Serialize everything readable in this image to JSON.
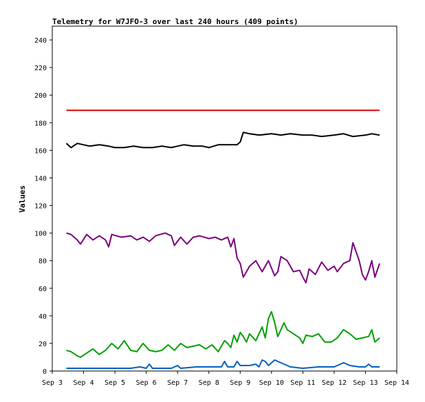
{
  "chart_data": {
    "type": "line",
    "title": "Telemetry for W7JFO-3 over last 240 hours (409 points)",
    "xlabel": "",
    "ylabel": "Values",
    "ylim": [
      0,
      250
    ],
    "yticks": [
      0,
      20,
      40,
      60,
      80,
      100,
      120,
      140,
      160,
      180,
      200,
      220,
      240
    ],
    "xlim": [
      3,
      14
    ],
    "xticks": [
      {
        "x": 3,
        "label": "Sep 3"
      },
      {
        "x": 4,
        "label": "Sep 4"
      },
      {
        "x": 5,
        "label": "Sep 5"
      },
      {
        "x": 6,
        "label": "Sep 6"
      },
      {
        "x": 7,
        "label": "Sep 7"
      },
      {
        "x": 8,
        "label": "Sep 8"
      },
      {
        "x": 9,
        "label": "Sep 9"
      },
      {
        "x": 10,
        "label": "Sep 10"
      },
      {
        "x": 11,
        "label": "Sep 11"
      },
      {
        "x": 12,
        "label": "Sep 12"
      },
      {
        "x": 13,
        "label": "Sep 13"
      },
      {
        "x": 14,
        "label": "Sep 14"
      }
    ],
    "grid": false,
    "series": [
      {
        "color": "#e00000",
        "points": [
          [
            3.45,
            189
          ],
          [
            13.45,
            189
          ]
        ]
      },
      {
        "color": "#000000",
        "points": [
          [
            3.45,
            165
          ],
          [
            3.6,
            162
          ],
          [
            3.8,
            165
          ],
          [
            4.0,
            164
          ],
          [
            4.2,
            163
          ],
          [
            4.5,
            164
          ],
          [
            4.8,
            163
          ],
          [
            5.0,
            162
          ],
          [
            5.3,
            162
          ],
          [
            5.6,
            163
          ],
          [
            5.9,
            162
          ],
          [
            6.2,
            162
          ],
          [
            6.5,
            163
          ],
          [
            6.8,
            162
          ],
          [
            7.0,
            163
          ],
          [
            7.2,
            164
          ],
          [
            7.5,
            163
          ],
          [
            7.8,
            163
          ],
          [
            8.0,
            162
          ],
          [
            8.3,
            164
          ],
          [
            8.6,
            164
          ],
          [
            8.9,
            164
          ],
          [
            9.0,
            166
          ],
          [
            9.1,
            173
          ],
          [
            9.3,
            172
          ],
          [
            9.6,
            171
          ],
          [
            10.0,
            172
          ],
          [
            10.3,
            171
          ],
          [
            10.6,
            172
          ],
          [
            11.0,
            171
          ],
          [
            11.3,
            171
          ],
          [
            11.6,
            170
          ],
          [
            12.0,
            171
          ],
          [
            12.3,
            172
          ],
          [
            12.6,
            170
          ],
          [
            13.0,
            171
          ],
          [
            13.2,
            172
          ],
          [
            13.45,
            171
          ]
        ]
      },
      {
        "color": "#7a007a",
        "points": [
          [
            3.45,
            100
          ],
          [
            3.6,
            99
          ],
          [
            3.8,
            95
          ],
          [
            3.9,
            92
          ],
          [
            4.1,
            99
          ],
          [
            4.3,
            95
          ],
          [
            4.5,
            98
          ],
          [
            4.7,
            95
          ],
          [
            4.8,
            90
          ],
          [
            4.9,
            99
          ],
          [
            5.2,
            97
          ],
          [
            5.5,
            98
          ],
          [
            5.7,
            95
          ],
          [
            5.9,
            97
          ],
          [
            6.1,
            94
          ],
          [
            6.3,
            98
          ],
          [
            6.6,
            100
          ],
          [
            6.8,
            98
          ],
          [
            6.9,
            91
          ],
          [
            7.1,
            97
          ],
          [
            7.3,
            92
          ],
          [
            7.5,
            97
          ],
          [
            7.7,
            98
          ],
          [
            8.0,
            96
          ],
          [
            8.2,
            97
          ],
          [
            8.4,
            95
          ],
          [
            8.6,
            97
          ],
          [
            8.7,
            90
          ],
          [
            8.8,
            96
          ],
          [
            8.9,
            82
          ],
          [
            9.0,
            78
          ],
          [
            9.1,
            68
          ],
          [
            9.3,
            76
          ],
          [
            9.5,
            80
          ],
          [
            9.7,
            72
          ],
          [
            9.9,
            80
          ],
          [
            10.1,
            69
          ],
          [
            10.2,
            72
          ],
          [
            10.3,
            83
          ],
          [
            10.5,
            80
          ],
          [
            10.7,
            72
          ],
          [
            10.9,
            73
          ],
          [
            11.0,
            68
          ],
          [
            11.1,
            64
          ],
          [
            11.2,
            74
          ],
          [
            11.4,
            70
          ],
          [
            11.6,
            79
          ],
          [
            11.8,
            73
          ],
          [
            12.0,
            76
          ],
          [
            12.1,
            72
          ],
          [
            12.3,
            78
          ],
          [
            12.5,
            80
          ],
          [
            12.6,
            93
          ],
          [
            12.8,
            80
          ],
          [
            12.9,
            70
          ],
          [
            13.0,
            66
          ],
          [
            13.1,
            72
          ],
          [
            13.2,
            80
          ],
          [
            13.3,
            68
          ],
          [
            13.45,
            78
          ]
        ]
      },
      {
        "color": "#00a000",
        "points": [
          [
            3.45,
            15
          ],
          [
            3.6,
            14
          ],
          [
            3.8,
            11
          ],
          [
            3.9,
            10
          ],
          [
            4.1,
            13
          ],
          [
            4.3,
            16
          ],
          [
            4.5,
            12
          ],
          [
            4.7,
            15
          ],
          [
            4.9,
            20
          ],
          [
            5.1,
            16
          ],
          [
            5.3,
            22
          ],
          [
            5.5,
            15
          ],
          [
            5.7,
            14
          ],
          [
            5.9,
            20
          ],
          [
            6.1,
            15
          ],
          [
            6.3,
            14
          ],
          [
            6.5,
            15
          ],
          [
            6.7,
            19
          ],
          [
            6.9,
            15
          ],
          [
            7.1,
            20
          ],
          [
            7.3,
            17
          ],
          [
            7.5,
            18
          ],
          [
            7.7,
            19
          ],
          [
            7.9,
            16
          ],
          [
            8.1,
            19
          ],
          [
            8.3,
            14
          ],
          [
            8.4,
            18
          ],
          [
            8.5,
            22
          ],
          [
            8.6,
            20
          ],
          [
            8.7,
            17
          ],
          [
            8.8,
            26
          ],
          [
            8.9,
            21
          ],
          [
            9.0,
            28
          ],
          [
            9.1,
            25
          ],
          [
            9.2,
            21
          ],
          [
            9.3,
            27
          ],
          [
            9.5,
            22
          ],
          [
            9.7,
            32
          ],
          [
            9.8,
            24
          ],
          [
            9.9,
            38
          ],
          [
            10.0,
            43
          ],
          [
            10.1,
            35
          ],
          [
            10.2,
            25
          ],
          [
            10.4,
            35
          ],
          [
            10.5,
            30
          ],
          [
            10.7,
            27
          ],
          [
            10.9,
            24
          ],
          [
            11.0,
            20
          ],
          [
            11.1,
            26
          ],
          [
            11.3,
            25
          ],
          [
            11.5,
            27
          ],
          [
            11.7,
            21
          ],
          [
            11.9,
            21
          ],
          [
            12.1,
            24
          ],
          [
            12.3,
            30
          ],
          [
            12.5,
            27
          ],
          [
            12.7,
            23
          ],
          [
            12.9,
            24
          ],
          [
            13.1,
            25
          ],
          [
            13.2,
            30
          ],
          [
            13.3,
            21
          ],
          [
            13.45,
            24
          ]
        ]
      },
      {
        "color": "#0060c0",
        "points": [
          [
            3.45,
            2
          ],
          [
            4.0,
            2
          ],
          [
            4.5,
            2
          ],
          [
            5.0,
            2
          ],
          [
            5.5,
            2
          ],
          [
            5.8,
            3
          ],
          [
            6.0,
            2
          ],
          [
            6.1,
            5
          ],
          [
            6.2,
            2
          ],
          [
            6.8,
            2
          ],
          [
            7.0,
            4
          ],
          [
            7.1,
            2
          ],
          [
            7.6,
            3
          ],
          [
            8.0,
            3
          ],
          [
            8.4,
            3
          ],
          [
            8.5,
            7
          ],
          [
            8.6,
            3
          ],
          [
            8.8,
            3
          ],
          [
            8.9,
            7
          ],
          [
            9.0,
            4
          ],
          [
            9.3,
            4
          ],
          [
            9.5,
            5
          ],
          [
            9.6,
            3
          ],
          [
            9.7,
            8
          ],
          [
            9.8,
            7
          ],
          [
            9.9,
            4
          ],
          [
            10.1,
            8
          ],
          [
            10.3,
            6
          ],
          [
            10.6,
            3
          ],
          [
            11.0,
            2
          ],
          [
            11.5,
            3
          ],
          [
            12.0,
            3
          ],
          [
            12.3,
            6
          ],
          [
            12.5,
            4
          ],
          [
            12.8,
            3
          ],
          [
            13.0,
            3
          ],
          [
            13.1,
            5
          ],
          [
            13.2,
            3
          ],
          [
            13.45,
            3
          ]
        ]
      }
    ]
  }
}
